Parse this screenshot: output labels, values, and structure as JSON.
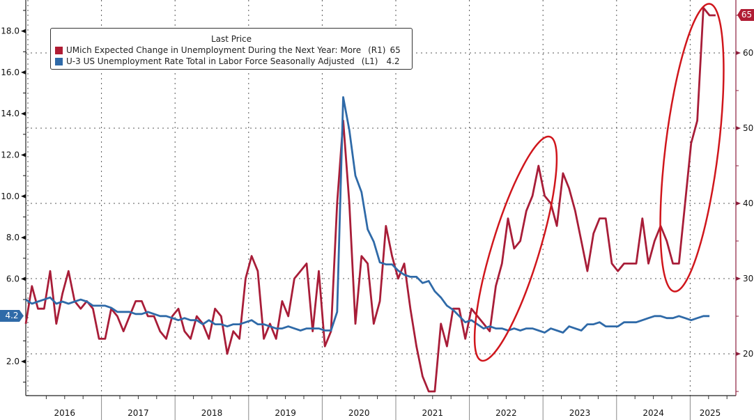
{
  "chart_data": {
    "type": "line",
    "title": "",
    "legend": {
      "header": "Last Price",
      "placement": "top-left",
      "entries": [
        {
          "label": "UMich Expected Change in Unemployment During the Next Year: More",
          "axis": "(R1)",
          "last": "65",
          "color": "#a81d38"
        },
        {
          "label": "U-3 US Unemployment Rate Total in Labor Force Seasonally Adjusted",
          "axis": "(L1)",
          "last": "4.2",
          "color": "#2f6aa8"
        }
      ]
    },
    "x": {
      "start": "2015-12",
      "frequency": "monthly",
      "tick_labels": [
        "2016",
        "2017",
        "2018",
        "2019",
        "2020",
        "2021",
        "2022",
        "2023",
        "2024",
        "2025"
      ]
    },
    "left_axis": {
      "range": [
        0.8,
        19.4
      ],
      "tick_labels": [
        "2.0",
        "6.0",
        "8.0",
        "10.0",
        "12.0",
        "14.0",
        "16.0",
        "18.0"
      ],
      "last_value_badge": "4.2"
    },
    "right_axis": {
      "range": [
        14.4,
        66.8
      ],
      "tick_labels": [
        "20",
        "30",
        "40",
        "50",
        "60"
      ],
      "last_value_badge": "65"
    },
    "grid": true,
    "series": [
      {
        "name": "UMich Expected Change in Unemployment During the Next Year: More",
        "axis": "right",
        "color": "#a81d38",
        "values": [
          24,
          29,
          26,
          26,
          31,
          24,
          28,
          31,
          27,
          26,
          27,
          26,
          22,
          22,
          26,
          25,
          23,
          25,
          27,
          27,
          25,
          25,
          23,
          22,
          25,
          26,
          23,
          22,
          25,
          24,
          22,
          26,
          25,
          20,
          23,
          22,
          30,
          33,
          31,
          22,
          24,
          22,
          27,
          25,
          30,
          31,
          32,
          23,
          31,
          21,
          23,
          40,
          51,
          40,
          24,
          33,
          32,
          24,
          27,
          37,
          33,
          30,
          32,
          26,
          21,
          17,
          15,
          15,
          24,
          21,
          26,
          26,
          22,
          26,
          25,
          24,
          23,
          29,
          32,
          38,
          34,
          35,
          39,
          41,
          45,
          41,
          40,
          37,
          44,
          42,
          39,
          35,
          31,
          36,
          38,
          38,
          32,
          31,
          32,
          32,
          32,
          38,
          32,
          35,
          37,
          35,
          32,
          32,
          40,
          48,
          51,
          66,
          65,
          65
        ]
      },
      {
        "name": "U-3 US Unemployment Rate Total in Labor Force Seasonally Adjusted",
        "axis": "left",
        "color": "#2f6aa8",
        "values": [
          5.0,
          4.8,
          4.9,
          5.0,
          5.1,
          4.8,
          4.9,
          4.8,
          4.9,
          5.0,
          4.9,
          4.7,
          4.7,
          4.7,
          4.6,
          4.4,
          4.4,
          4.4,
          4.3,
          4.3,
          4.4,
          4.3,
          4.2,
          4.2,
          4.1,
          4.0,
          4.1,
          4.0,
          4.0,
          3.8,
          4.0,
          3.8,
          3.8,
          3.7,
          3.8,
          3.8,
          3.9,
          4.0,
          3.8,
          3.8,
          3.7,
          3.6,
          3.6,
          3.7,
          3.6,
          3.5,
          3.6,
          3.6,
          3.6,
          3.5,
          3.5,
          4.4,
          14.8,
          13.2,
          11.0,
          10.2,
          8.4,
          7.8,
          6.8,
          6.7,
          6.7,
          6.4,
          6.2,
          6.1,
          6.1,
          5.8,
          5.9,
          5.4,
          5.1,
          4.7,
          4.5,
          4.2,
          3.9,
          4.0,
          3.8,
          3.6,
          3.7,
          3.6,
          3.6,
          3.5,
          3.6,
          3.5,
          3.6,
          3.6,
          3.5,
          3.4,
          3.6,
          3.5,
          3.4,
          3.7,
          3.6,
          3.5,
          3.8,
          3.8,
          3.9,
          3.7,
          3.7,
          3.7,
          3.9,
          3.9,
          3.9,
          4.0,
          4.1,
          4.2,
          4.2,
          4.1,
          4.1,
          4.2,
          4.1,
          4.0,
          4.1,
          4.2,
          4.2
        ]
      }
    ],
    "annotations": [
      "ellipse around 2022 rise",
      "ellipse around 2025 surge"
    ]
  }
}
